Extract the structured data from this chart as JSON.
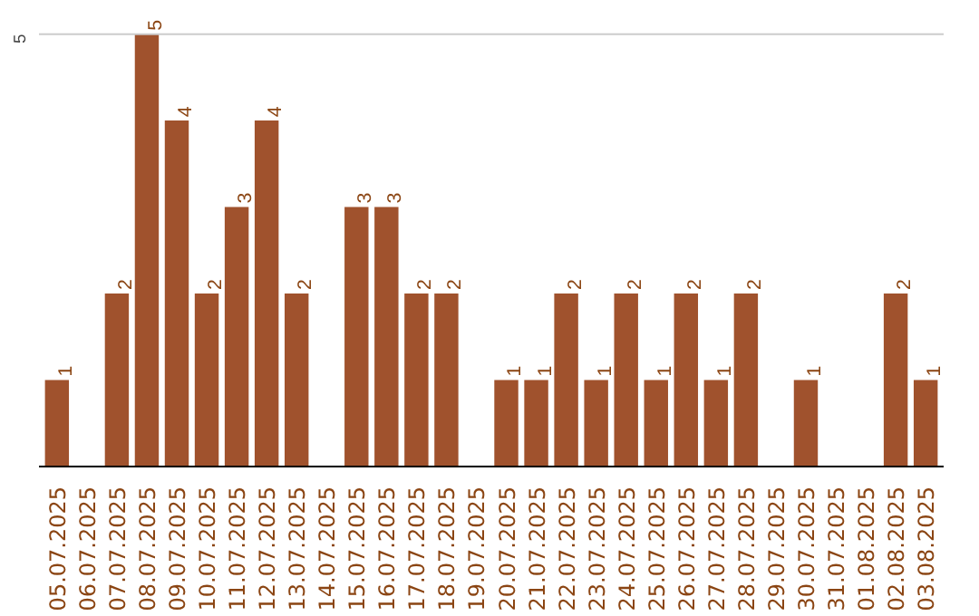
{
  "chart_data": {
    "type": "bar",
    "categories": [
      "05.07.2025",
      "06.07.2025",
      "07.07.2025",
      "08.07.2025",
      "09.07.2025",
      "10.07.2025",
      "11.07.2025",
      "12.07.2025",
      "13.07.2025",
      "14.07.2025",
      "15.07.2025",
      "16.07.2025",
      "17.07.2025",
      "18.07.2025",
      "19.07.2025",
      "20.07.2025",
      "21.07.2025",
      "22.07.2025",
      "23.07.2025",
      "24.07.2025",
      "25.07.2025",
      "26.07.2025",
      "27.07.2025",
      "28.07.2025",
      "29.07.2025",
      "30.07.2025",
      "31.07.2025",
      "01.08.2025",
      "02.08.2025",
      "03.08.2025"
    ],
    "values": [
      1,
      0,
      2,
      5,
      4,
      2,
      3,
      4,
      2,
      0,
      3,
      3,
      2,
      2,
      0,
      1,
      1,
      2,
      1,
      2,
      1,
      2,
      1,
      2,
      0,
      1,
      0,
      0,
      2,
      1
    ],
    "value_labels": [
      "1",
      null,
      "2",
      "5",
      "4",
      "2",
      "3",
      "4",
      "2",
      null,
      "3",
      "3",
      "2",
      "2",
      null,
      "1",
      "1",
      "2",
      "1",
      "2",
      "1",
      "2",
      "1",
      "2",
      null,
      "1",
      null,
      null,
      "2",
      "1"
    ],
    "color": "#a0522d",
    "ylim": [
      0,
      5.0
    ],
    "yticks": [
      5
    ],
    "ref_lines": [
      {
        "axis": "y",
        "value": 5,
        "color": "#cccccc"
      }
    ]
  }
}
